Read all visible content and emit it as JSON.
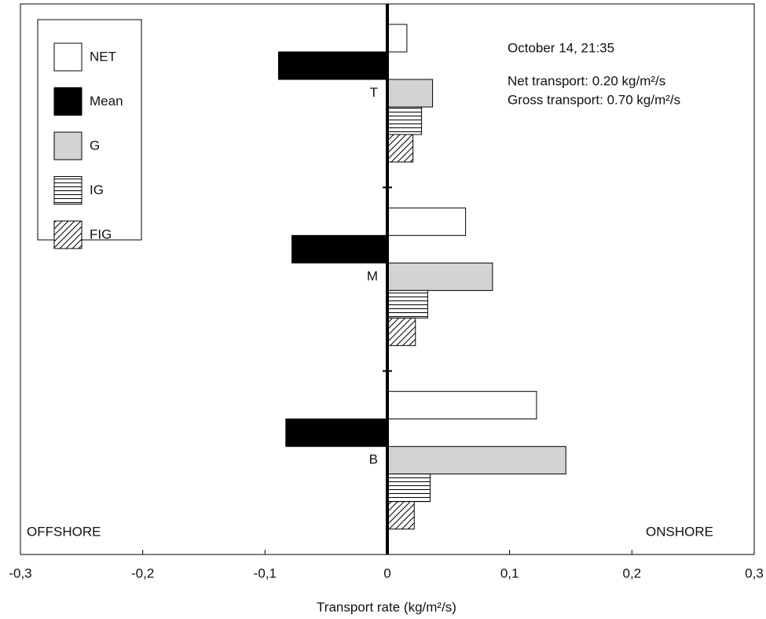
{
  "chart_data": {
    "type": "barh",
    "categories": [
      "T",
      "M",
      "B"
    ],
    "series": [
      {
        "name": "NET",
        "color": "#ffffff",
        "hatch": "none",
        "values": [
          0.016,
          0.064,
          0.122
        ]
      },
      {
        "name": "Mean",
        "color": "#000000",
        "hatch": "none",
        "values": [
          -0.089,
          -0.078,
          -0.083
        ]
      },
      {
        "name": "G",
        "color": "#d3d3d3",
        "hatch": "none",
        "values": [
          0.037,
          0.086,
          0.146
        ]
      },
      {
        "name": "IG",
        "color": "#ffffff",
        "hatch": "horizontal",
        "values": [
          0.028,
          0.033,
          0.035
        ]
      },
      {
        "name": "FIG",
        "color": "#ffffff",
        "hatch": "diagonal",
        "values": [
          0.021,
          0.023,
          0.022
        ]
      }
    ],
    "xlabel": "Transport rate (kg/m²/s)",
    "xlim": [
      -0.3,
      0.3
    ],
    "xticks": [
      {
        "value": -0.3,
        "label": "-0,3"
      },
      {
        "value": -0.2,
        "label": "-0,2"
      },
      {
        "value": -0.1,
        "label": "-0,1"
      },
      0,
      {
        "value": 0.1,
        "label": "0,1"
      },
      {
        "value": 0.2,
        "label": "0,2"
      },
      {
        "value": 0.3,
        "label": "0,3"
      }
    ],
    "annotations": [
      "October 14, 21:35",
      "Net transport:  0.20 kg/m²/s",
      "Gross transport: 0.70 kg/m²/s"
    ],
    "left_label": "OFFSHORE",
    "right_label": "ONSHORE",
    "legend": "upper left"
  }
}
